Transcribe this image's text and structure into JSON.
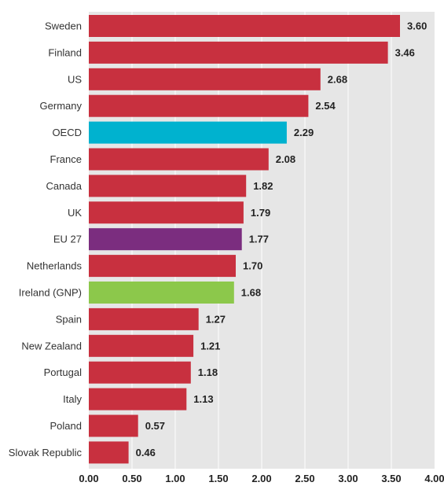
{
  "chart_data": {
    "type": "bar",
    "orientation": "horizontal",
    "title": "",
    "xlabel": "",
    "ylabel": "",
    "xlim": [
      0,
      4
    ],
    "ticks": [
      "0.00",
      "0.50",
      "1.00",
      "1.50",
      "2.00",
      "2.50",
      "3.00",
      "3.50",
      "4.00"
    ],
    "grid": true,
    "categories": [
      "Sweden",
      "Finland",
      "US",
      "Germany",
      "OECD",
      "France",
      "Canada",
      "UK",
      "EU 27",
      "Netherlands",
      "Ireland (GNP)",
      "Spain",
      "New Zealand",
      "Portugal",
      "Italy",
      "Poland",
      "Slovak Republic"
    ],
    "values": [
      3.6,
      3.46,
      2.68,
      2.54,
      2.29,
      2.08,
      1.82,
      1.79,
      1.77,
      1.7,
      1.68,
      1.27,
      1.21,
      1.18,
      1.13,
      0.57,
      0.46
    ],
    "value_labels": [
      "3.60",
      "3.46",
      "2.68",
      "2.54",
      "2.29",
      "2.08",
      "1.82",
      "1.79",
      "1.77",
      "1.70",
      "1.68",
      "1.27",
      "1.21",
      "1.18",
      "1.13",
      "0.57",
      "0.46"
    ],
    "colors": {
      "default": "#c8303f",
      "OECD": "#00b2cf",
      "EU 27": "#7b2d7f",
      "Ireland (GNP)": "#8cc84b",
      "plot_background": "#e6e6e6",
      "gridline": "#ffffff"
    }
  }
}
